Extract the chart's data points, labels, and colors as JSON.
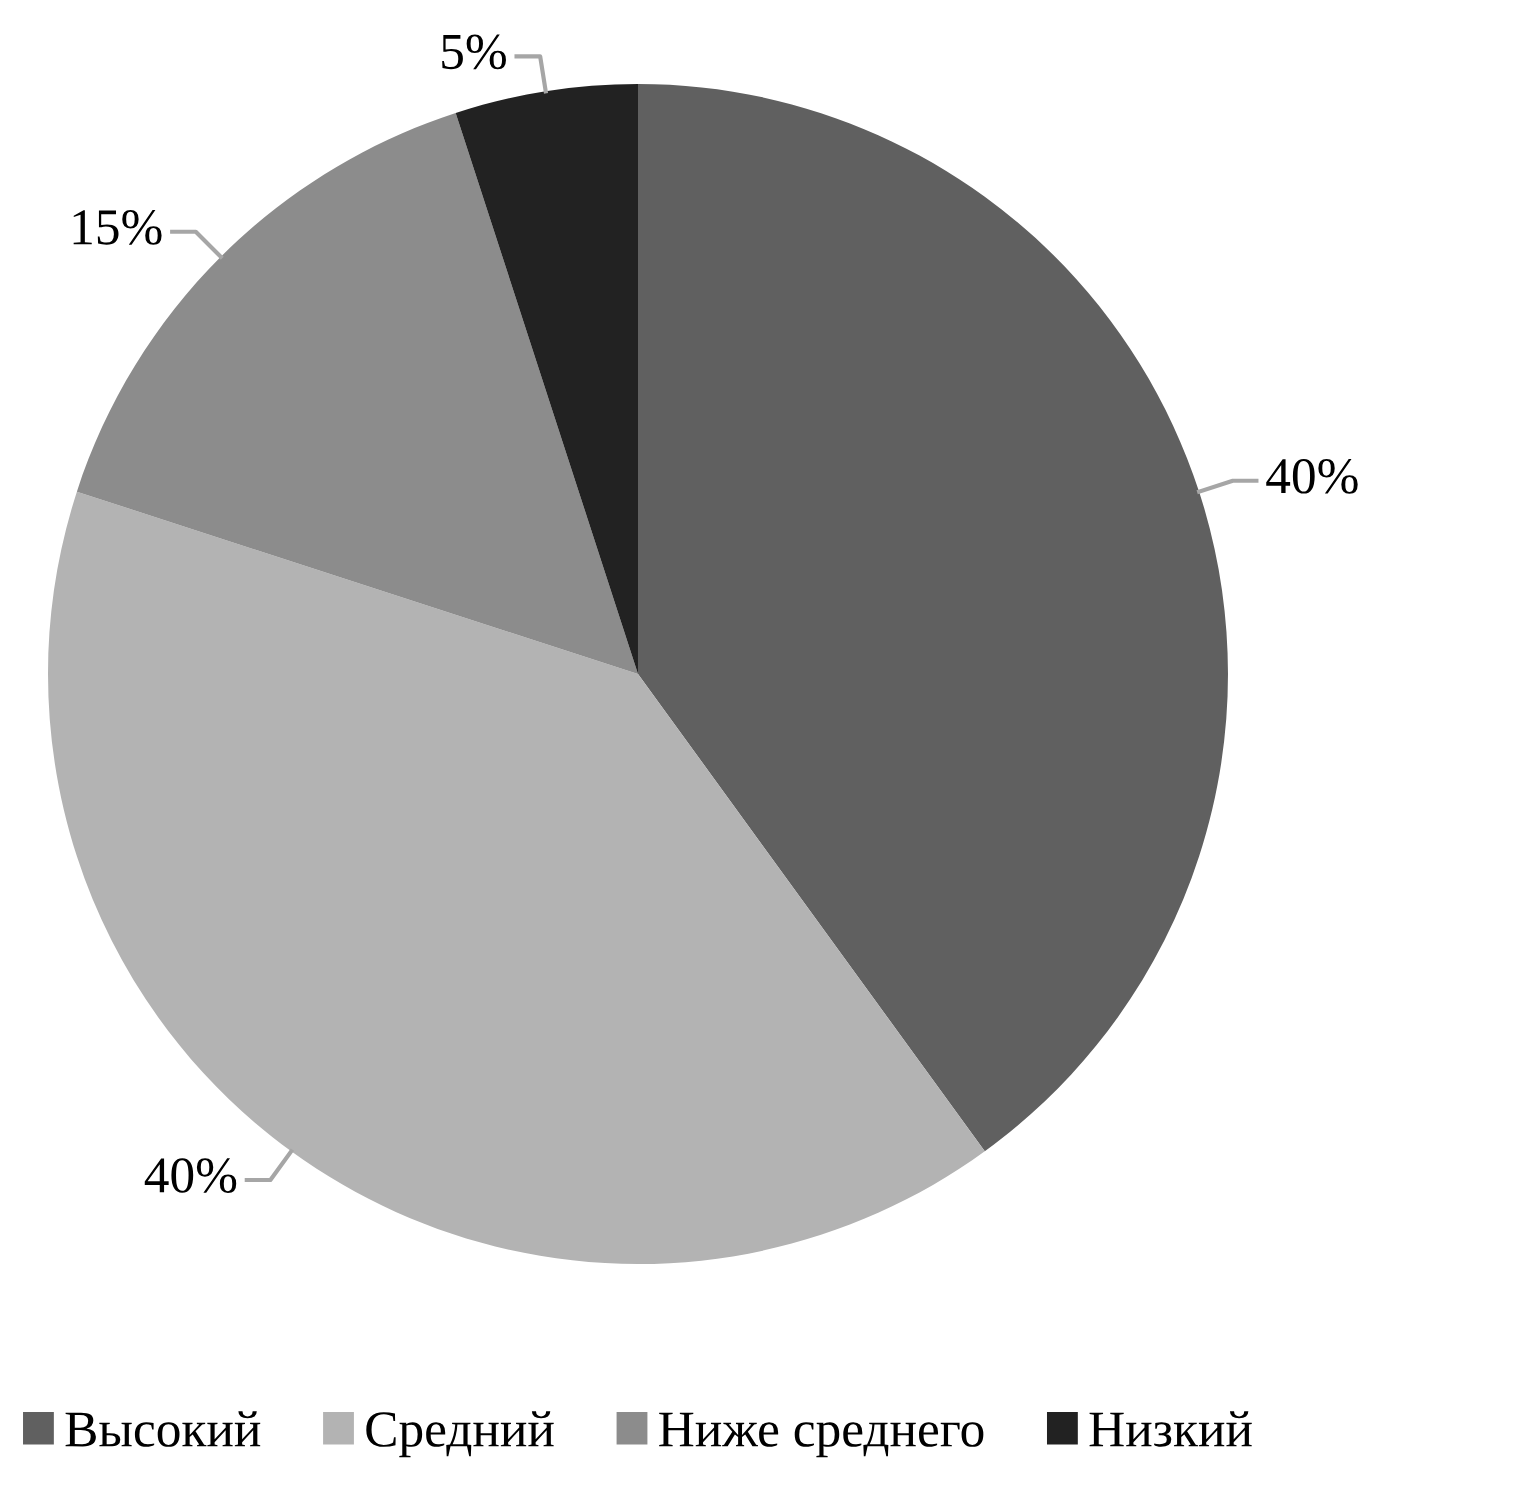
{
  "chart_data": {
    "type": "pie",
    "categories": [
      "Высокий",
      "Средний",
      "Ниже среднего",
      "Низкий"
    ],
    "values": [
      40,
      40,
      15,
      5
    ],
    "colors": [
      "#606060",
      "#b3b3b3",
      "#8c8c8c",
      "#222222"
    ],
    "value_labels": [
      "40%",
      "40%",
      "15%",
      "5%"
    ],
    "legend": "bottom"
  }
}
